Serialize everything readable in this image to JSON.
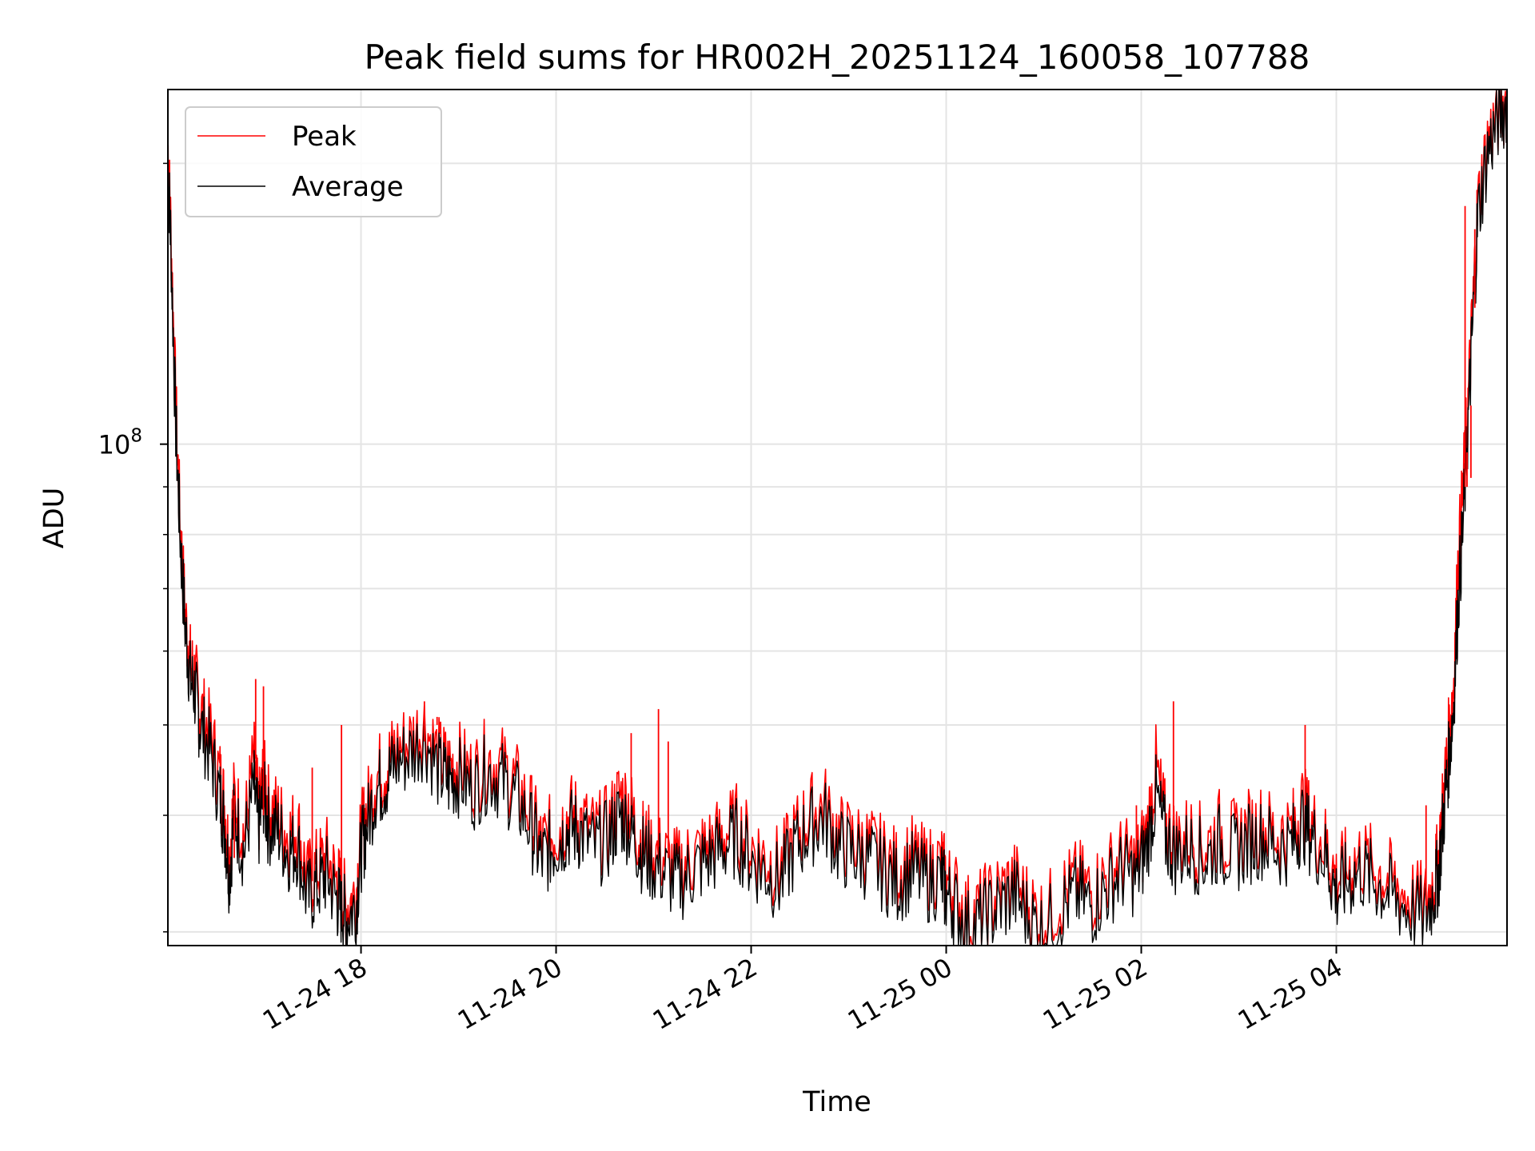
{
  "chart_data": {
    "type": "line",
    "title": "Peak field sums for HR002H_20251124_160058_107788",
    "xlabel": "Time",
    "ylabel": "ADU",
    "y_scale": "log",
    "ylim": [
      29000000,
      240000000
    ],
    "xlim_hours": [
      16.02,
      29.75
    ],
    "x_unit": "hours since 2025-11-24 00:00",
    "x_ticks": [
      {
        "hours": 18,
        "label": "11-24 18"
      },
      {
        "hours": 20,
        "label": "11-24 20"
      },
      {
        "hours": 22,
        "label": "11-24 22"
      },
      {
        "hours": 24,
        "label": "11-25 00"
      },
      {
        "hours": 26,
        "label": "11-25 02"
      },
      {
        "hours": 28,
        "label": "11-25 04"
      }
    ],
    "y_major_ticks": [
      {
        "value": 100000000,
        "base": "10",
        "exp": "8"
      }
    ],
    "y_minor_ticks": [
      30000000,
      40000000,
      50000000,
      60000000,
      70000000,
      80000000,
      90000000,
      200000000
    ],
    "grid": true,
    "legend_position": "upper-left",
    "series": [
      {
        "name": "Peak",
        "color": "#ff0000",
        "x": [
          16.02,
          16.05,
          16.1,
          16.15,
          16.2,
          16.25,
          16.3,
          16.35,
          16.45,
          16.55,
          16.6,
          16.65,
          16.7,
          16.8,
          16.9,
          16.95,
          17.0,
          17.05,
          17.15,
          17.25,
          17.35,
          17.45,
          17.55,
          17.65,
          17.75,
          17.8,
          17.85,
          17.95,
          18.0,
          18.05,
          18.15,
          18.25,
          18.35,
          18.5,
          18.65,
          18.8,
          18.9,
          19.0,
          19.15,
          19.3,
          19.45,
          19.6,
          19.75,
          19.85,
          19.95,
          20.05,
          20.15,
          20.25,
          20.4,
          20.55,
          20.65,
          20.75,
          20.85,
          20.95,
          21.1,
          21.25,
          21.4,
          21.55,
          21.7,
          21.85,
          22.0,
          22.15,
          22.3,
          22.45,
          22.6,
          22.75,
          22.9,
          23.05,
          23.2,
          23.35,
          23.5,
          23.65,
          23.8,
          23.95,
          24.0,
          24.1,
          24.25,
          24.4,
          24.55,
          24.7,
          24.85,
          25.0,
          25.2,
          25.35,
          25.5,
          25.65,
          25.8,
          25.95,
          26.05,
          26.15,
          26.25,
          26.35,
          26.5,
          26.65,
          26.8,
          26.95,
          27.1,
          27.25,
          27.4,
          27.55,
          27.65,
          27.75,
          27.9,
          28.0,
          28.1,
          28.25,
          28.4,
          28.55,
          28.7,
          28.9,
          29.0,
          29.05,
          29.1,
          29.15,
          29.2,
          29.25,
          29.3,
          29.35,
          29.4,
          29.45,
          29.55,
          29.65,
          29.75
        ],
        "values": [
          210000000,
          170000000,
          110000000,
          80000000,
          65000000,
          58000000,
          56000000,
          52000000,
          49000000,
          44000000,
          41000000,
          36000000,
          42000000,
          38000000,
          46000000,
          40000000,
          44000000,
          41000000,
          40000000,
          38000000,
          39000000,
          34000000,
          35000000,
          36000000,
          34000000,
          33000000,
          32000000,
          33000000,
          38000000,
          40000000,
          44000000,
          45000000,
          47000000,
          48000000,
          50000000,
          46000000,
          45000000,
          45500000,
          44000000,
          46000000,
          45000000,
          43000000,
          40000000,
          37000000,
          38000000,
          39000000,
          40000000,
          39500000,
          38000000,
          39000000,
          42000000,
          41000000,
          38000000,
          37000000,
          36000000,
          35000000,
          36000000,
          37000000,
          38000000,
          39000000,
          37000000,
          36000000,
          35000000,
          38000000,
          40000000,
          41000000,
          38000000,
          37500000,
          37000000,
          36000000,
          35000000,
          36000000,
          35000000,
          35500000,
          34000000,
          33000000,
          31000000,
          32000000,
          33000000,
          34000000,
          32000000,
          31000000,
          33000000,
          34000000,
          33000000,
          34500000,
          36000000,
          35500000,
          38000000,
          45000000,
          39000000,
          37500000,
          38000000,
          37000000,
          38500000,
          37500000,
          38500000,
          39000000,
          38000000,
          38500000,
          41000000,
          39000000,
          37000000,
          34000000,
          35000000,
          36000000,
          35000000,
          34000000,
          33000000,
          32000000,
          34000000,
          36000000,
          42000000,
          48000000,
          55000000,
          75000000,
          90000000,
          110000000,
          140000000,
          180000000,
          210000000,
          225000000,
          235000000
        ]
      },
      {
        "name": "Average",
        "color": "#000000",
        "x": [
          16.02,
          16.05,
          16.1,
          16.15,
          16.2,
          16.25,
          16.3,
          16.35,
          16.45,
          16.55,
          16.6,
          16.65,
          16.7,
          16.8,
          16.9,
          16.95,
          17.0,
          17.05,
          17.15,
          17.25,
          17.35,
          17.45,
          17.55,
          17.65,
          17.75,
          17.8,
          17.85,
          17.95,
          18.0,
          18.05,
          18.15,
          18.25,
          18.35,
          18.5,
          18.65,
          18.8,
          18.9,
          19.0,
          19.15,
          19.3,
          19.45,
          19.6,
          19.75,
          19.85,
          19.95,
          20.05,
          20.15,
          20.25,
          20.4,
          20.55,
          20.65,
          20.75,
          20.85,
          20.95,
          21.1,
          21.25,
          21.4,
          21.55,
          21.7,
          21.85,
          22.0,
          22.15,
          22.3,
          22.45,
          22.6,
          22.75,
          22.9,
          23.05,
          23.2,
          23.35,
          23.5,
          23.65,
          23.8,
          23.95,
          24.0,
          24.1,
          24.25,
          24.4,
          24.55,
          24.7,
          24.85,
          25.0,
          25.2,
          25.35,
          25.5,
          25.65,
          25.8,
          25.95,
          26.05,
          26.15,
          26.25,
          26.35,
          26.5,
          26.65,
          26.8,
          26.95,
          27.1,
          27.25,
          27.4,
          27.55,
          27.65,
          27.75,
          27.9,
          28.0,
          28.1,
          28.25,
          28.4,
          28.55,
          28.7,
          28.9,
          29.0,
          29.05,
          29.1,
          29.15,
          29.2,
          29.25,
          29.3,
          29.35,
          29.4,
          29.45,
          29.55,
          29.65,
          29.75
        ],
        "values": [
          205000000,
          165000000,
          105000000,
          78000000,
          63000000,
          56000000,
          54000000,
          50000000,
          47000000,
          42000000,
          39000000,
          34500000,
          40000000,
          36500000,
          43000000,
          38500000,
          42000000,
          39000000,
          38500000,
          36500000,
          37000000,
          32500000,
          33500000,
          34500000,
          32500000,
          31800000,
          31000000,
          32000000,
          36500000,
          38500000,
          42500000,
          43500000,
          45500000,
          46500000,
          48500000,
          44500000,
          43500000,
          44000000,
          42500000,
          44500000,
          43500000,
          41500000,
          38500000,
          35800000,
          36800000,
          37800000,
          38800000,
          38300000,
          36800000,
          37800000,
          40000000,
          39000000,
          36800000,
          35800000,
          34800000,
          33800000,
          34800000,
          35800000,
          36800000,
          37800000,
          35800000,
          34800000,
          33800000,
          36800000,
          38800000,
          39800000,
          36800000,
          36300000,
          35800000,
          34800000,
          33800000,
          34800000,
          33800000,
          34300000,
          32800000,
          31800000,
          30000000,
          31000000,
          31900000,
          32900000,
          31000000,
          30000000,
          31900000,
          32900000,
          31900000,
          33400000,
          34800000,
          34300000,
          36800000,
          42000000,
          37800000,
          36300000,
          36800000,
          35800000,
          37300000,
          36300000,
          37300000,
          37800000,
          36800000,
          37300000,
          39500000,
          37800000,
          35800000,
          32900000,
          33900000,
          34800000,
          33900000,
          32900000,
          31900000,
          31000000,
          32900000,
          34800000,
          40000000,
          45500000,
          52000000,
          68000000,
          82000000,
          105000000,
          135000000,
          175000000,
          205000000,
          222000000,
          232000000
        ]
      }
    ],
    "spikes": [
      {
        "series": "Peak",
        "x": 16.7,
        "value": 42000000
      },
      {
        "series": "Peak",
        "x": 16.92,
        "value": 56000000
      },
      {
        "series": "Peak",
        "x": 17.0,
        "value": 55000000
      },
      {
        "series": "Peak",
        "x": 17.5,
        "value": 45000000
      },
      {
        "series": "Peak",
        "x": 17.8,
        "value": 50000000
      },
      {
        "series": "Peak",
        "x": 18.5,
        "value": 47000000
      },
      {
        "series": "Peak",
        "x": 18.65,
        "value": 53000000
      },
      {
        "series": "Peak",
        "x": 18.78,
        "value": 51000000
      },
      {
        "series": "Peak",
        "x": 20.77,
        "value": 49000000
      },
      {
        "series": "Peak",
        "x": 21.05,
        "value": 52000000
      },
      {
        "series": "Peak",
        "x": 21.15,
        "value": 48000000
      },
      {
        "series": "Peak",
        "x": 25.95,
        "value": 41000000
      },
      {
        "series": "Peak",
        "x": 26.33,
        "value": 53000000
      },
      {
        "series": "Peak",
        "x": 27.68,
        "value": 50000000
      },
      {
        "series": "Peak",
        "x": 28.92,
        "value": 41000000
      },
      {
        "series": "Peak",
        "x": 29.32,
        "value": 180000000
      },
      {
        "series": "Peak",
        "x": 29.34,
        "value": 98000000
      },
      {
        "series": "Peak",
        "x": 29.38,
        "value": 92000000
      },
      {
        "series": "Peak",
        "x": 29.42,
        "value": 170000000
      }
    ]
  }
}
